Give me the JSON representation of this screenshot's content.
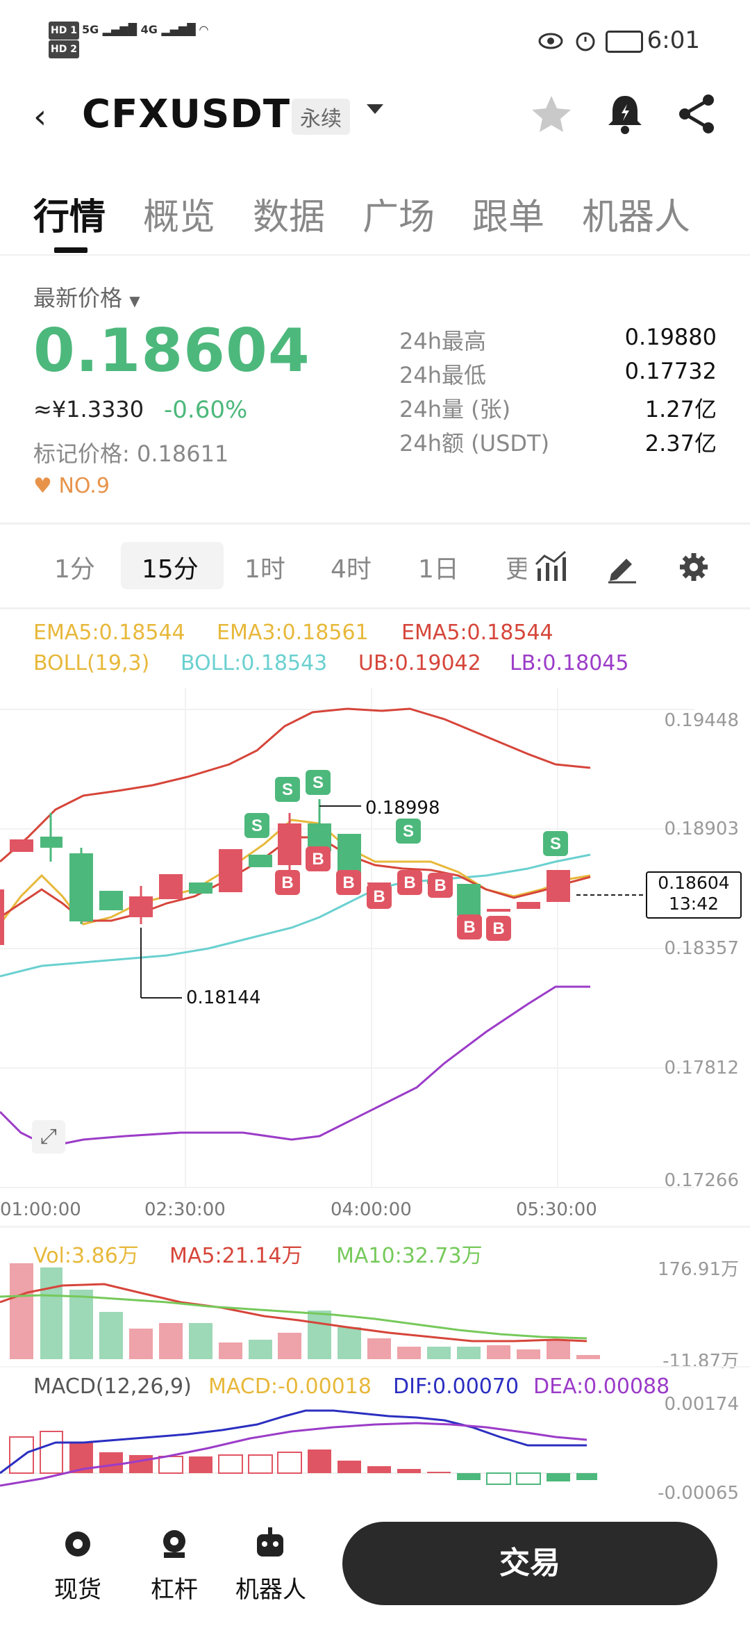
{
  "status": {
    "time": "6:01",
    "hd1": "HD 1",
    "hd2": "HD 2",
    "net1": "5G",
    "net2": "4G"
  },
  "header": {
    "symbol": "CFXUSDT",
    "contract": "永续"
  },
  "tabs": [
    {
      "label": "行情"
    },
    {
      "label": "概览"
    },
    {
      "label": "数据"
    },
    {
      "label": "广场"
    },
    {
      "label": "跟单"
    },
    {
      "label": "机器人"
    }
  ],
  "price": {
    "label": "最新价格",
    "last": "0.18604",
    "cny": "≈¥1.3330",
    "change": "-0.60%",
    "mark": "标记价格: 0.18611",
    "rank": "NO.9"
  },
  "stats": [
    {
      "label": "24h最高",
      "value": "0.19880"
    },
    {
      "label": "24h最低",
      "value": "0.17732"
    },
    {
      "label": "24h量 (张)",
      "value": "1.27亿"
    },
    {
      "label": "24h额 (USDT)",
      "value": "2.37亿"
    }
  ],
  "intervals": [
    {
      "label": "1分"
    },
    {
      "label": "15分"
    },
    {
      "label": "1时"
    },
    {
      "label": "4时"
    },
    {
      "label": "1日"
    },
    {
      "label": "更"
    }
  ],
  "indicators": {
    "ema5a": "EMA5:0.18544",
    "ema3": "EMA3:0.18561",
    "ema5b": "EMA5:0.18544",
    "boll_p": "BOLL(19,3)",
    "boll": "BOLL:0.18543",
    "ub": "UB:0.19042",
    "lb": "LB:0.18045"
  },
  "price_axis": [
    "0.19448",
    "0.18903",
    "0.18357",
    "0.17812",
    "0.17266"
  ],
  "time_axis": [
    "01:00:00",
    "02:30:00",
    "04:00:00",
    "05:30:00"
  ],
  "annotations": {
    "high": "0.18998",
    "low": "0.18144",
    "cur_price": "0.18604",
    "countdown": "13:42"
  },
  "vol": {
    "vol": "Vol:3.86万",
    "ma5": "MA5:21.14万",
    "ma10": "MA10:32.73万",
    "max": "176.91万",
    "min": "-11.87万"
  },
  "macd": {
    "label": "MACD(12,26,9)",
    "macd": "MACD:-0.00018",
    "dif": "DIF:0.00070",
    "dea": "DEA:0.00088",
    "max": "0.00174",
    "min": "-0.00065"
  },
  "bottom": [
    {
      "label": "现货"
    },
    {
      "label": "杠杆"
    },
    {
      "label": "机器人"
    }
  ],
  "trade_label": "交易",
  "colors": {
    "up": "#4db87c",
    "down": "#e05563",
    "ema5": "#e7b83a",
    "boll": "#6ad0d0",
    "ub": "#d6453a",
    "lb": "#9b3cc8"
  }
}
